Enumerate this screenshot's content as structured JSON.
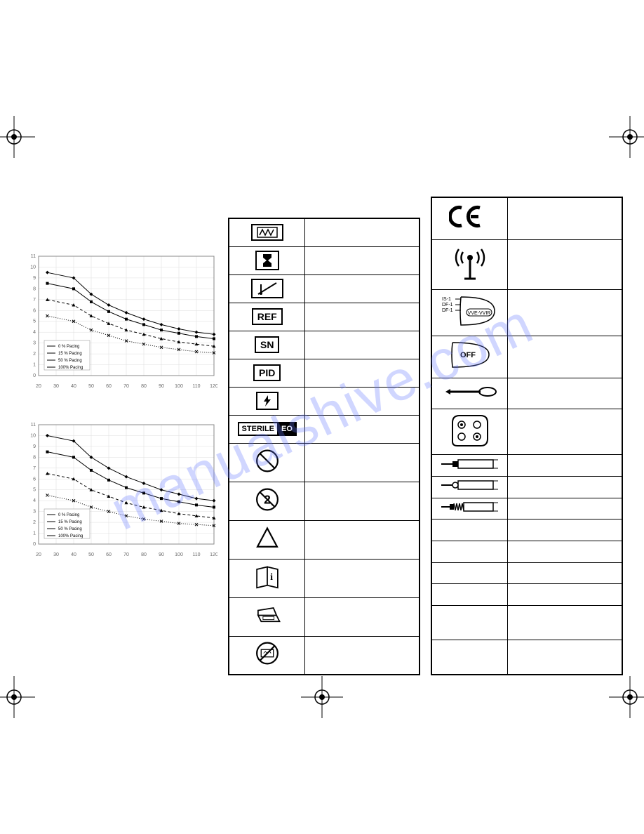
{
  "watermark": "manualshive.com",
  "charts": {
    "chart1": {
      "type": "line",
      "xlim": [
        20,
        120
      ],
      "ylim": [
        0,
        11
      ],
      "xtick_step": 10,
      "ytick_step": 1,
      "grid_color": "#dddddd",
      "axis_color": "#000000",
      "background_color": "#ffffff",
      "legend_items": [
        "0 % Pacing",
        "15 % Pacing",
        "50 % Pacing",
        "100% Pacing"
      ],
      "legend_fontsize": 6,
      "series": [
        {
          "marker": "diamond",
          "style": "solid",
          "color": "#000000",
          "points": [
            [
              25,
              9.5
            ],
            [
              40,
              9
            ],
            [
              50,
              7.5
            ],
            [
              60,
              6.5
            ],
            [
              70,
              5.8
            ],
            [
              80,
              5.2
            ],
            [
              90,
              4.7
            ],
            [
              100,
              4.3
            ],
            [
              110,
              4
            ],
            [
              120,
              3.8
            ]
          ]
        },
        {
          "marker": "square",
          "style": "solid",
          "color": "#000000",
          "points": [
            [
              25,
              8.5
            ],
            [
              40,
              8
            ],
            [
              50,
              6.8
            ],
            [
              60,
              5.9
            ],
            [
              70,
              5.2
            ],
            [
              80,
              4.7
            ],
            [
              90,
              4.2
            ],
            [
              100,
              3.9
            ],
            [
              110,
              3.6
            ],
            [
              120,
              3.4
            ]
          ]
        },
        {
          "marker": "triangle",
          "style": "dashed",
          "color": "#000000",
          "points": [
            [
              25,
              7
            ],
            [
              40,
              6.5
            ],
            [
              50,
              5.5
            ],
            [
              60,
              4.8
            ],
            [
              70,
              4.2
            ],
            [
              80,
              3.8
            ],
            [
              90,
              3.4
            ],
            [
              100,
              3.1
            ],
            [
              110,
              2.9
            ],
            [
              120,
              2.7
            ]
          ]
        },
        {
          "marker": "x",
          "style": "dotted",
          "color": "#000000",
          "points": [
            [
              25,
              5.5
            ],
            [
              40,
              5
            ],
            [
              50,
              4.2
            ],
            [
              60,
              3.7
            ],
            [
              70,
              3.2
            ],
            [
              80,
              2.9
            ],
            [
              90,
              2.6
            ],
            [
              100,
              2.4
            ],
            [
              110,
              2.2
            ],
            [
              120,
              2.1
            ]
          ]
        }
      ]
    },
    "chart2": {
      "type": "line",
      "xlim": [
        20,
        120
      ],
      "ylim": [
        0,
        11
      ],
      "xtick_step": 10,
      "ytick_step": 1,
      "grid_color": "#dddddd",
      "axis_color": "#000000",
      "background_color": "#ffffff",
      "legend_items": [
        "0 % Pacing",
        "15 % Pacing",
        "50 % Pacing",
        "100% Pacing"
      ],
      "legend_fontsize": 6,
      "series": [
        {
          "marker": "diamond",
          "style": "solid",
          "color": "#000000",
          "points": [
            [
              25,
              10
            ],
            [
              40,
              9.5
            ],
            [
              50,
              8
            ],
            [
              60,
              7
            ],
            [
              70,
              6.2
            ],
            [
              80,
              5.6
            ],
            [
              90,
              5
            ],
            [
              100,
              4.6
            ],
            [
              110,
              4.2
            ],
            [
              120,
              4
            ]
          ]
        },
        {
          "marker": "square",
          "style": "solid",
          "color": "#000000",
          "points": [
            [
              25,
              8.5
            ],
            [
              40,
              8
            ],
            [
              50,
              6.8
            ],
            [
              60,
              5.9
            ],
            [
              70,
              5.2
            ],
            [
              80,
              4.7
            ],
            [
              90,
              4.2
            ],
            [
              100,
              3.9
            ],
            [
              110,
              3.6
            ],
            [
              120,
              3.4
            ]
          ]
        },
        {
          "marker": "triangle",
          "style": "dashed",
          "color": "#000000",
          "points": [
            [
              25,
              6.5
            ],
            [
              40,
              6
            ],
            [
              50,
              5
            ],
            [
              60,
              4.4
            ],
            [
              70,
              3.8
            ],
            [
              80,
              3.4
            ],
            [
              90,
              3.1
            ],
            [
              100,
              2.8
            ],
            [
              110,
              2.6
            ],
            [
              120,
              2.4
            ]
          ]
        },
        {
          "marker": "x",
          "style": "dotted",
          "color": "#000000",
          "points": [
            [
              25,
              4.5
            ],
            [
              40,
              4
            ],
            [
              50,
              3.4
            ],
            [
              60,
              3
            ],
            [
              70,
              2.6
            ],
            [
              80,
              2.3
            ],
            [
              90,
              2.1
            ],
            [
              100,
              1.9
            ],
            [
              110,
              1.8
            ],
            [
              120,
              1.7
            ]
          ]
        }
      ]
    }
  },
  "table1_labels": {
    "ref": "REF",
    "sn": "SN",
    "pid": "PID",
    "sterile": "STERILE",
    "eo": "EO"
  },
  "table2_labels": {
    "is1": "IS-1",
    "df1a": "DF-1",
    "df1b": "DF-1",
    "vve": "VVE-VVIR",
    "off": "OFF"
  },
  "colors": {
    "border": "#000000",
    "text": "#000000",
    "watermark": "rgba(100,120,255,0.3)"
  }
}
